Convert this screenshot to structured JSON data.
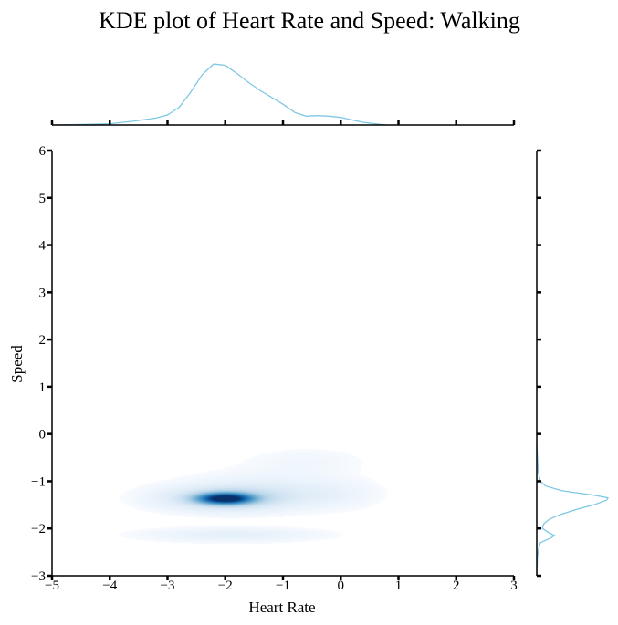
{
  "chart_data": {
    "type": "kde",
    "title": "KDE plot of Heart Rate and Speed: Walking",
    "xlabel": "Heart Rate",
    "ylabel": "Speed",
    "xlim": [
      -5,
      3
    ],
    "ylim": [
      -3,
      6
    ],
    "xticks": [
      "−5",
      "−4",
      "−3",
      "−2",
      "−1",
      "0",
      "1",
      "2",
      "3"
    ],
    "yticks": [
      "−3",
      "−2",
      "−1",
      "0",
      "1",
      "2",
      "3",
      "4",
      "5",
      "6"
    ],
    "colors": {
      "marginal": "#7ec8e3",
      "joint_dark": "#08306b"
    },
    "marginal_x": [
      {
        "x": -5.0,
        "d": 0.0
      },
      {
        "x": -4.4,
        "d": 0.01
      },
      {
        "x": -4.0,
        "d": 0.02
      },
      {
        "x": -3.6,
        "d": 0.06
      },
      {
        "x": -3.2,
        "d": 0.11
      },
      {
        "x": -3.0,
        "d": 0.16
      },
      {
        "x": -2.8,
        "d": 0.28
      },
      {
        "x": -2.6,
        "d": 0.52
      },
      {
        "x": -2.4,
        "d": 0.8
      },
      {
        "x": -2.2,
        "d": 0.97
      },
      {
        "x": -2.0,
        "d": 0.95
      },
      {
        "x": -1.8,
        "d": 0.82
      },
      {
        "x": -1.6,
        "d": 0.68
      },
      {
        "x": -1.4,
        "d": 0.55
      },
      {
        "x": -1.2,
        "d": 0.44
      },
      {
        "x": -1.0,
        "d": 0.33
      },
      {
        "x": -0.8,
        "d": 0.2
      },
      {
        "x": -0.6,
        "d": 0.14
      },
      {
        "x": -0.4,
        "d": 0.15
      },
      {
        "x": -0.2,
        "d": 0.14
      },
      {
        "x": 0.0,
        "d": 0.12
      },
      {
        "x": 0.2,
        "d": 0.08
      },
      {
        "x": 0.4,
        "d": 0.04
      },
      {
        "x": 0.6,
        "d": 0.02
      },
      {
        "x": 0.8,
        "d": 0.0
      }
    ],
    "marginal_y": [
      {
        "y": -3.0,
        "d": 0.0
      },
      {
        "y": -2.6,
        "d": 0.01
      },
      {
        "y": -2.4,
        "d": 0.03
      },
      {
        "y": -2.3,
        "d": 0.05
      },
      {
        "y": -2.2,
        "d": 0.2
      },
      {
        "y": -2.15,
        "d": 0.25
      },
      {
        "y": -2.1,
        "d": 0.18
      },
      {
        "y": -2.0,
        "d": 0.08
      },
      {
        "y": -1.9,
        "d": 0.1
      },
      {
        "y": -1.8,
        "d": 0.18
      },
      {
        "y": -1.7,
        "d": 0.34
      },
      {
        "y": -1.6,
        "d": 0.55
      },
      {
        "y": -1.5,
        "d": 0.8
      },
      {
        "y": -1.4,
        "d": 0.98
      },
      {
        "y": -1.35,
        "d": 1.0
      },
      {
        "y": -1.3,
        "d": 0.82
      },
      {
        "y": -1.2,
        "d": 0.35
      },
      {
        "y": -1.1,
        "d": 0.12
      },
      {
        "y": -1.0,
        "d": 0.05
      },
      {
        "y": -0.8,
        "d": 0.02
      },
      {
        "y": -0.5,
        "d": 0.01
      },
      {
        "y": -0.2,
        "d": 0.0
      }
    ],
    "joint_components": [
      {
        "cx": -2.0,
        "cy": -1.38,
        "sx": 0.3,
        "sy": 0.075,
        "w": 1.0
      },
      {
        "cx": -2.0,
        "cy": -1.38,
        "sx": 0.75,
        "sy": 0.17,
        "w": 0.22
      },
      {
        "cx": -1.3,
        "cy": -1.2,
        "sx": 0.9,
        "sy": 0.25,
        "w": 0.07
      },
      {
        "cx": -1.9,
        "cy": -2.15,
        "sx": 1.0,
        "sy": 0.1,
        "w": 0.08
      },
      {
        "cx": -0.6,
        "cy": -0.6,
        "sx": 0.7,
        "sy": 0.2,
        "w": 0.03
      },
      {
        "cx": -0.1,
        "cy": -1.3,
        "sx": 0.5,
        "sy": 0.2,
        "w": 0.04
      }
    ]
  }
}
